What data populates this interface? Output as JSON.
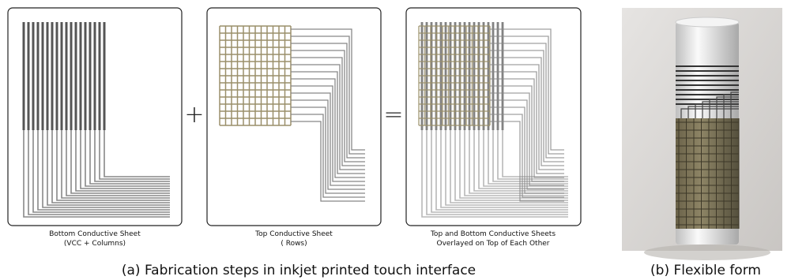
{
  "panels": [
    {
      "caption": [
        "Bottom Conductive Sheet",
        "(VCC + Columns)"
      ]
    },
    {
      "caption": [
        "Top Conductive Sheet",
        "( Rows)"
      ]
    },
    {
      "caption": [
        "Top and Bottom Conductive Sheets",
        "Overlayed on Top of Each Other"
      ]
    }
  ],
  "operators": [
    "+",
    "="
  ],
  "subcaptions": [
    "(a) Fabrication steps in inkjet printed touch interface",
    "(b) Flexible form"
  ]
}
